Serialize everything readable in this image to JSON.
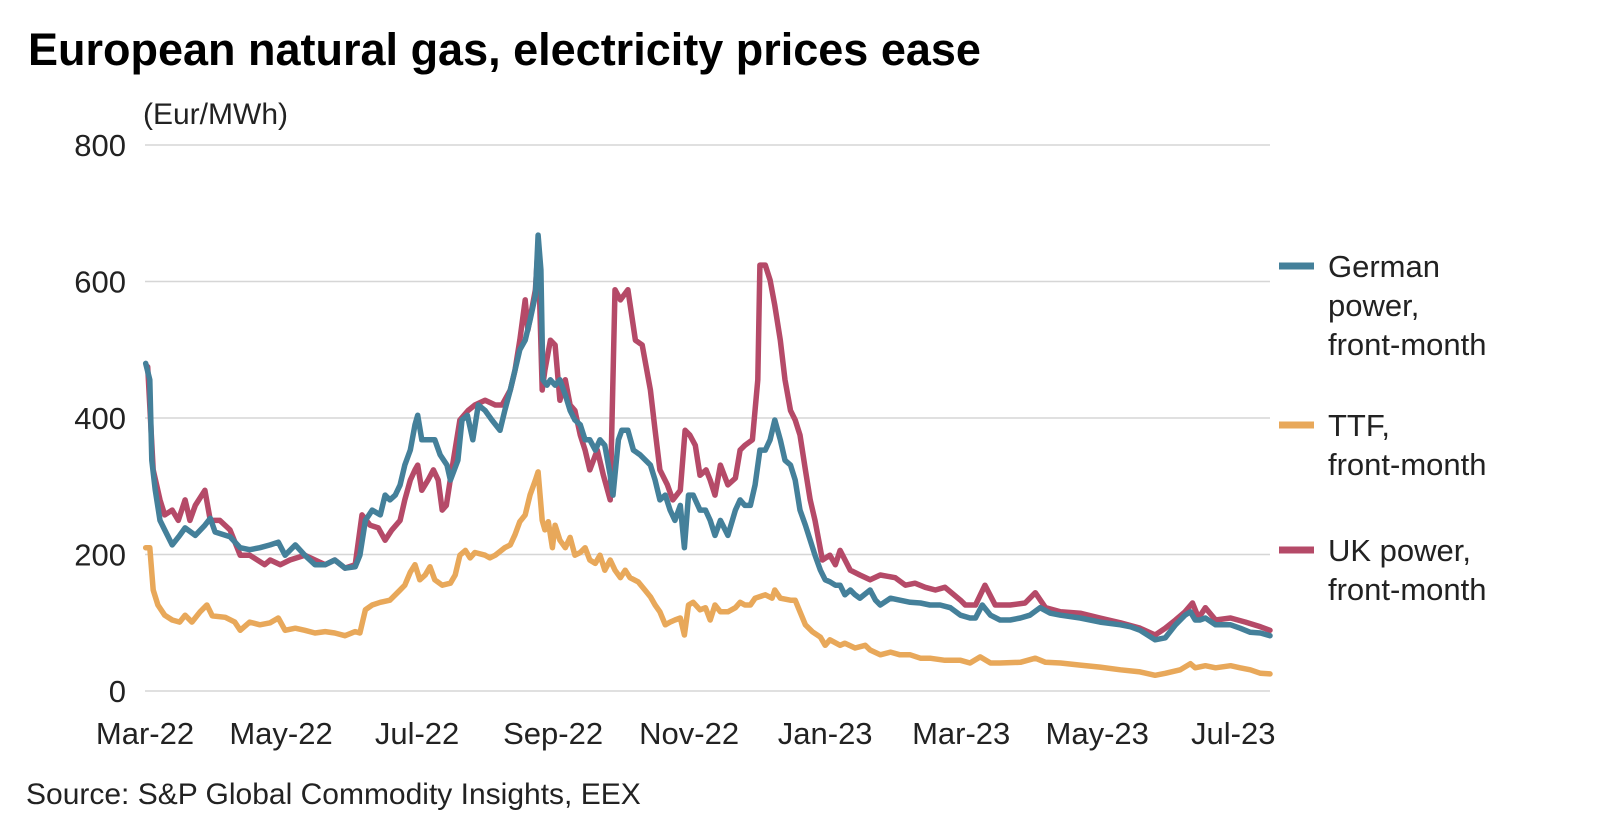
{
  "chart_data": {
    "type": "line",
    "title": "European natural gas, electricity prices ease",
    "ylabel": "(Eur/MWh)",
    "xlabel": "",
    "x_unit": "months since Mar-22",
    "xlim": [
      0,
      16.54
    ],
    "ylim": [
      0,
      800
    ],
    "yticks": [
      0,
      200,
      400,
      600,
      800
    ],
    "xticks": [
      {
        "value": 0,
        "label": "Mar-22"
      },
      {
        "value": 2,
        "label": "May-22"
      },
      {
        "value": 4,
        "label": "Jul-22"
      },
      {
        "value": 6,
        "label": "Sep-22"
      },
      {
        "value": 8,
        "label": "Nov-22"
      },
      {
        "value": 10,
        "label": "Jan-23"
      },
      {
        "value": 12,
        "label": "Mar-23"
      },
      {
        "value": 14,
        "label": "May-23"
      },
      {
        "value": 16,
        "label": "Jul-23"
      }
    ],
    "grid": true,
    "legend_position": "right",
    "source": "Source: S&P Global Commodity Insights, EEX",
    "series": [
      {
        "name": "UK power, front-month",
        "legend_lines": [
          "UK power,",
          "front-month"
        ],
        "color": "#b54a68",
        "x": [
          0.04,
          0.12,
          0.22,
          0.29,
          0.4,
          0.49,
          0.59,
          0.66,
          0.74,
          0.88,
          0.96,
          1.1,
          1.25,
          1.4,
          1.54,
          1.76,
          1.84,
          1.99,
          2.13,
          2.35,
          2.5,
          2.65,
          2.79,
          2.94,
          3.09,
          3.19,
          3.31,
          3.43,
          3.53,
          3.63,
          3.75,
          3.82,
          3.9,
          3.97,
          4.01,
          4.07,
          4.16,
          4.24,
          4.31,
          4.37,
          4.43,
          4.51,
          4.63,
          4.75,
          4.85,
          5.0,
          5.15,
          5.25,
          5.37,
          5.44,
          5.51,
          5.59,
          5.63,
          5.74,
          5.78,
          5.84,
          5.88,
          5.96,
          6.03,
          6.1,
          6.18,
          6.25,
          6.32,
          6.4,
          6.47,
          6.54,
          6.65,
          6.74,
          6.84,
          6.91,
          6.99,
          7.1,
          7.21,
          7.31,
          7.43,
          7.5,
          7.57,
          7.68,
          7.76,
          7.87,
          7.94,
          8.01,
          8.09,
          8.16,
          8.25,
          8.31,
          8.38,
          8.46,
          8.57,
          8.68,
          8.75,
          8.82,
          8.93,
          9.01,
          9.04,
          9.12,
          9.19,
          9.26,
          9.34,
          9.41,
          9.49,
          9.56,
          9.63,
          9.71,
          9.78,
          9.85,
          9.96,
          10.07,
          10.15,
          10.22,
          10.37,
          10.51,
          10.66,
          10.81,
          11.03,
          11.18,
          11.32,
          11.47,
          11.62,
          11.76,
          11.99,
          12.06,
          12.21,
          12.35,
          12.5,
          12.72,
          12.94,
          13.09,
          13.24,
          13.46,
          13.75,
          14.04,
          14.34,
          14.63,
          14.85,
          15.0,
          15.15,
          15.29,
          15.4,
          15.49,
          15.59,
          15.74,
          15.96,
          16.18,
          16.4,
          16.54
        ],
        "y": [
          475,
          324,
          280,
          258,
          265,
          250,
          280,
          250,
          272,
          294,
          250,
          250,
          236,
          199,
          199,
          185,
          192,
          185,
          192,
          199,
          192,
          185,
          192,
          180,
          185,
          258,
          243,
          239,
          221,
          236,
          250,
          280,
          309,
          324,
          331,
          294,
          309,
          324,
          309,
          265,
          272,
          324,
          397,
          411,
          419,
          426,
          419,
          419,
          441,
          470,
          514,
          573,
          529,
          588,
          653,
          441,
          470,
          514,
          507,
          426,
          456,
          419,
          411,
          375,
          353,
          324,
          353,
          316,
          280,
          588,
          573,
          588,
          514,
          507,
          441,
          382,
          324,
          302,
          280,
          294,
          382,
          375,
          360,
          316,
          324,
          309,
          287,
          331,
          302,
          312,
          353,
          360,
          368,
          456,
          624,
          624,
          602,
          565,
          514,
          456,
          411,
          397,
          375,
          324,
          280,
          250,
          192,
          199,
          185,
          206,
          177,
          170,
          163,
          170,
          166,
          155,
          158,
          152,
          148,
          152,
          133,
          126,
          126,
          155,
          126,
          126,
          129,
          144,
          122,
          116,
          114,
          107,
          100,
          92,
          82,
          92,
          104,
          116,
          129,
          107,
          122,
          104,
          107,
          101,
          94,
          89
        ]
      },
      {
        "name": "German power, front-month",
        "legend_lines": [
          "German",
          "power,",
          "front-month"
        ],
        "color": "#44809a",
        "x": [
          0.01,
          0.07,
          0.1,
          0.15,
          0.22,
          0.29,
          0.4,
          0.51,
          0.59,
          0.74,
          0.88,
          0.96,
          1.03,
          1.25,
          1.4,
          1.54,
          1.69,
          1.84,
          1.96,
          2.06,
          2.21,
          2.35,
          2.5,
          2.65,
          2.79,
          2.94,
          3.09,
          3.16,
          3.24,
          3.34,
          3.46,
          3.53,
          3.6,
          3.68,
          3.75,
          3.82,
          3.9,
          3.97,
          4.01,
          4.07,
          4.16,
          4.26,
          4.34,
          4.44,
          4.49,
          4.6,
          4.66,
          4.74,
          4.82,
          4.9,
          5.0,
          5.1,
          5.22,
          5.29,
          5.37,
          5.44,
          5.51,
          5.59,
          5.66,
          5.74,
          5.78,
          5.82,
          5.85,
          5.91,
          5.96,
          6.03,
          6.1,
          6.18,
          6.25,
          6.32,
          6.4,
          6.47,
          6.54,
          6.62,
          6.69,
          6.76,
          6.84,
          6.88,
          6.96,
          7.01,
          7.1,
          7.18,
          7.28,
          7.43,
          7.5,
          7.57,
          7.65,
          7.72,
          7.79,
          7.87,
          7.93,
          7.99,
          8.06,
          8.16,
          8.24,
          8.31,
          8.38,
          8.46,
          8.57,
          8.68,
          8.75,
          8.82,
          8.9,
          8.97,
          9.04,
          9.12,
          9.19,
          9.26,
          9.34,
          9.41,
          9.49,
          9.56,
          9.63,
          9.71,
          9.78,
          9.85,
          9.93,
          10.0,
          10.07,
          10.15,
          10.22,
          10.29,
          10.37,
          10.44,
          10.51,
          10.66,
          10.74,
          10.81,
          10.96,
          11.1,
          11.25,
          11.4,
          11.54,
          11.69,
          11.84,
          11.99,
          12.13,
          12.21,
          12.31,
          12.43,
          12.57,
          12.72,
          12.87,
          13.01,
          13.16,
          13.31,
          13.46,
          13.75,
          14.04,
          14.34,
          14.49,
          14.63,
          14.85,
          15.0,
          15.15,
          15.29,
          15.37,
          15.44,
          15.51,
          15.59,
          15.74,
          15.96,
          16.1,
          16.25,
          16.4,
          16.54
        ],
        "y": [
          480,
          456,
          338,
          295,
          250,
          236,
          214,
          228,
          239,
          228,
          243,
          253,
          233,
          226,
          210,
          207,
          210,
          214,
          218,
          199,
          214,
          199,
          185,
          185,
          192,
          180,
          182,
          199,
          250,
          265,
          258,
          287,
          280,
          287,
          302,
          331,
          353,
          390,
          404,
          368,
          368,
          368,
          346,
          331,
          309,
          338,
          397,
          404,
          368,
          419,
          411,
          397,
          382,
          411,
          441,
          470,
          500,
          514,
          543,
          580,
          668,
          617,
          456,
          448,
          456,
          448,
          456,
          434,
          411,
          397,
          390,
          368,
          368,
          353,
          368,
          360,
          316,
          287,
          368,
          382,
          382,
          353,
          346,
          331,
          309,
          280,
          287,
          265,
          250,
          272,
          210,
          287,
          287,
          265,
          265,
          250,
          228,
          250,
          228,
          265,
          280,
          272,
          272,
          302,
          353,
          353,
          368,
          397,
          368,
          338,
          331,
          309,
          265,
          243,
          221,
          199,
          177,
          163,
          160,
          155,
          155,
          141,
          148,
          141,
          136,
          148,
          133,
          126,
          136,
          133,
          130,
          129,
          126,
          126,
          122,
          111,
          107,
          107,
          126,
          111,
          104,
          104,
          107,
          111,
          122,
          114,
          111,
          107,
          101,
          97,
          94,
          89,
          75,
          78,
          97,
          111,
          116,
          104,
          104,
          107,
          97,
          97,
          92,
          86,
          85,
          81
        ]
      },
      {
        "name": "TTF, front-month",
        "legend_lines": [
          "TTF,",
          "front-month"
        ],
        "color": "#e8a85a",
        "x": [
          0.01,
          0.07,
          0.12,
          0.19,
          0.29,
          0.4,
          0.51,
          0.59,
          0.69,
          0.81,
          0.91,
          0.99,
          1.18,
          1.32,
          1.4,
          1.54,
          1.69,
          1.84,
          1.96,
          2.06,
          2.21,
          2.35,
          2.5,
          2.65,
          2.79,
          2.94,
          3.09,
          3.16,
          3.24,
          3.34,
          3.46,
          3.6,
          3.75,
          3.82,
          3.9,
          3.97,
          4.04,
          4.12,
          4.19,
          4.26,
          4.37,
          4.49,
          4.56,
          4.63,
          4.71,
          4.78,
          4.85,
          5.0,
          5.07,
          5.15,
          5.29,
          5.37,
          5.44,
          5.51,
          5.59,
          5.66,
          5.74,
          5.78,
          5.84,
          5.88,
          5.93,
          5.99,
          6.03,
          6.1,
          6.18,
          6.25,
          6.32,
          6.4,
          6.47,
          6.54,
          6.62,
          6.69,
          6.76,
          6.84,
          6.91,
          6.99,
          7.06,
          7.13,
          7.25,
          7.35,
          7.43,
          7.5,
          7.57,
          7.65,
          7.72,
          7.79,
          7.87,
          7.93,
          7.99,
          8.06,
          8.16,
          8.24,
          8.31,
          8.38,
          8.46,
          8.57,
          8.68,
          8.75,
          8.82,
          8.9,
          8.97,
          9.12,
          9.22,
          9.26,
          9.34,
          9.49,
          9.56,
          9.63,
          9.71,
          9.81,
          9.93,
          10.0,
          10.07,
          10.22,
          10.29,
          10.44,
          10.59,
          10.66,
          10.81,
          10.96,
          11.1,
          11.25,
          11.4,
          11.54,
          11.76,
          11.99,
          12.13,
          12.28,
          12.43,
          12.57,
          12.87,
          13.09,
          13.24,
          13.46,
          13.75,
          14.04,
          14.34,
          14.63,
          14.85,
          15.0,
          15.22,
          15.37,
          15.44,
          15.59,
          15.74,
          15.96,
          16.1,
          16.25,
          16.4,
          16.54
        ],
        "y": [
          210,
          210,
          148,
          126,
          111,
          104,
          101,
          111,
          101,
          116,
          126,
          110,
          108,
          101,
          89,
          101,
          97,
          100,
          107,
          89,
          92,
          89,
          85,
          87,
          85,
          81,
          87,
          85,
          119,
          126,
          130,
          133,
          148,
          155,
          174,
          185,
          163,
          170,
          182,
          163,
          155,
          158,
          170,
          199,
          206,
          195,
          203,
          199,
          195,
          199,
          210,
          214,
          229,
          248,
          258,
          287,
          309,
          321,
          250,
          236,
          248,
          210,
          243,
          221,
          210,
          225,
          199,
          203,
          210,
          192,
          187,
          199,
          177,
          192,
          177,
          166,
          177,
          166,
          160,
          148,
          138,
          126,
          116,
          97,
          101,
          104,
          107,
          82,
          126,
          130,
          119,
          122,
          104,
          126,
          116,
          116,
          122,
          130,
          126,
          126,
          136,
          141,
          136,
          148,
          136,
          133,
          133,
          116,
          97,
          87,
          79,
          67,
          75,
          67,
          70,
          63,
          67,
          60,
          53,
          57,
          53,
          53,
          48,
          48,
          45,
          45,
          41,
          50,
          41,
          41,
          42,
          48,
          42,
          41,
          38,
          35,
          31,
          28,
          23,
          26,
          31,
          40,
          34,
          37,
          34,
          37,
          34,
          31,
          26,
          25
        ]
      }
    ],
    "legend_order": [
      1,
      2,
      0
    ]
  }
}
